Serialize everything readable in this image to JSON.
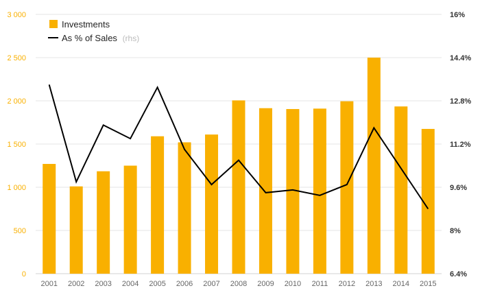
{
  "colors": {
    "bar": "#F9B000",
    "line": "#000000",
    "left_axis_text": "#F9B000",
    "right_axis_text": "#333333",
    "x_axis_text": "#666666",
    "grid": "#E6E6E6",
    "legend_note": "#BBBBBB"
  },
  "legend": {
    "investments_label": "Investments",
    "line_label": "As % of Sales",
    "line_note": "(rhs)"
  },
  "chart_data": {
    "type": "bar",
    "categories": [
      "2001",
      "2002",
      "2003",
      "2004",
      "2005",
      "2006",
      "2007",
      "2008",
      "2009",
      "2010",
      "2011",
      "2012",
      "2013",
      "2014",
      "2015"
    ],
    "series": [
      {
        "name": "Investments",
        "type": "bar",
        "axis": "left",
        "values": [
          1270,
          1010,
          1185,
          1250,
          1590,
          1520,
          1610,
          2005,
          1915,
          1905,
          1910,
          1995,
          2500,
          1935,
          1675
        ]
      },
      {
        "name": "As % of Sales (rhs)",
        "type": "line",
        "axis": "right",
        "values": [
          13.4,
          9.8,
          11.9,
          11.4,
          13.3,
          11.0,
          9.7,
          10.6,
          9.4,
          9.5,
          9.3,
          9.7,
          11.8,
          10.3,
          8.8
        ]
      }
    ],
    "ylim": [
      0,
      3000
    ],
    "y2lim": [
      6.4,
      16
    ],
    "yticks": [
      "0",
      "500",
      "1 000",
      "1 500",
      "2 000",
      "2 500",
      "3 000"
    ],
    "y2ticks": [
      "6.4%",
      "8%",
      "9.6%",
      "11.2%",
      "12.8%",
      "14.4%",
      "16%"
    ],
    "grid": true,
    "legend_position": "top-left",
    "title": "",
    "xlabel": "",
    "ylabel": ""
  }
}
